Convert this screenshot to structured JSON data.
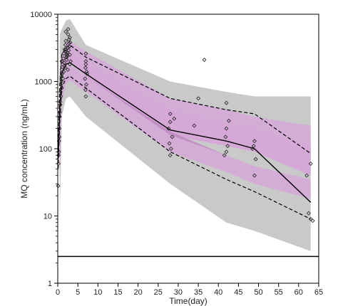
{
  "chart_data": {
    "type": "line",
    "title": "",
    "xlabel": "Time(day)",
    "ylabel": "MQ concentration (ng/mL)",
    "x_scale": "linear",
    "y_scale": "log",
    "xlim": [
      0,
      65
    ],
    "ylim": [
      1,
      10000
    ],
    "x_ticks": [
      0,
      5,
      10,
      15,
      20,
      25,
      30,
      35,
      40,
      45,
      50,
      55,
      60,
      65
    ],
    "y_ticks": [
      1,
      10,
      100,
      1000,
      10000
    ],
    "y_tick_labels": [
      "1",
      "10",
      "100",
      "1000",
      "10000"
    ],
    "colors": {
      "pi_band": "#c9c9c9",
      "median_band": "#d5a8d8",
      "median_band_overlap": "#b07ab4",
      "line": "#000000"
    },
    "bands": [
      {
        "name": "outer_prediction_interval",
        "x": [
          0.5,
          1,
          2,
          3,
          7,
          28,
          42,
          49,
          63
        ],
        "lower": [
          8,
          300,
          550,
          600,
          300,
          30,
          8,
          6,
          3
        ],
        "upper": [
          5000,
          6000,
          8000,
          8500,
          3500,
          1000,
          700,
          600,
          600
        ]
      },
      {
        "name": "median_interval_lower_percentile",
        "x": [
          0.5,
          1,
          2,
          3,
          7,
          28,
          42,
          49,
          63
        ],
        "lower": [
          30,
          500,
          900,
          1050,
          700,
          90,
          45,
          30,
          18
        ],
        "upper": [
          60,
          800,
          1500,
          1800,
          1200,
          180,
          80,
          55,
          35
        ]
      },
      {
        "name": "median_interval_median",
        "x": [
          0.5,
          1,
          2,
          3,
          7,
          28,
          42,
          49,
          63
        ],
        "lower": [
          50,
          1000,
          1600,
          1900,
          1200,
          160,
          110,
          90,
          40
        ],
        "upper": [
          100,
          1500,
          2400,
          2600,
          1800,
          380,
          230,
          200,
          110
        ]
      },
      {
        "name": "median_interval_upper_percentile",
        "x": [
          0.5,
          1,
          2,
          3,
          7,
          28,
          42,
          49,
          63
        ],
        "lower": [
          70,
          1300,
          2200,
          2500,
          1800,
          280,
          180,
          160,
          70
        ],
        "upper": [
          150,
          2500,
          3600,
          4000,
          2800,
          560,
          380,
          300,
          220
        ]
      }
    ],
    "series": [
      {
        "name": "",
        "style": "solid",
        "x": [
          0.1,
          0.5,
          1,
          2,
          3,
          7,
          28,
          42,
          49,
          63
        ],
        "y": [
          70,
          400,
          1300,
          1800,
          1900,
          1300,
          190,
          130,
          100,
          16
        ]
      },
      {
        "name": "",
        "style": "dashed",
        "x": [
          0.1,
          0.5,
          1,
          2,
          3,
          7,
          28,
          42,
          49,
          63
        ],
        "y": [
          100,
          900,
          2500,
          3200,
          3500,
          2300,
          560,
          380,
          330,
          85
        ]
      },
      {
        "name": "",
        "style": "dashed",
        "x": [
          0.1,
          0.5,
          1,
          2,
          3,
          7,
          28,
          42,
          49,
          63
        ],
        "y": [
          50,
          250,
          800,
          1100,
          1200,
          800,
          90,
          35,
          23,
          9
        ]
      }
    ],
    "reference_line": {
      "y": 2.5,
      "style": "solid"
    },
    "observations": {
      "marker": "open-diamond",
      "x": [
        0.1,
        0.2,
        0.3,
        0.4,
        0.5,
        0.6,
        0.7,
        0.8,
        0.9,
        1.0,
        1.0,
        1.2,
        1.4,
        1.5,
        1.7,
        1.9,
        2.0,
        2.1,
        2.3,
        2.5,
        2.6,
        2.8,
        3.0,
        3.0,
        3.2,
        0.3,
        0.8,
        1.3,
        1.8,
        2.2,
        2.7,
        3.1,
        0.5,
        1.1,
        2.4,
        2.9,
        0.6,
        1.6,
        2.0,
        2.6,
        1.0,
        1.5,
        2.2,
        2.8,
        0.2,
        0.4,
        0.9,
        1.7,
        2.3,
        3.0,
        2.5,
        2.0,
        7.0,
        7.0,
        7.2,
        6.8,
        7.1,
        6.9,
        7.0,
        7.3,
        7.0,
        6.9,
        28,
        28,
        28.5,
        27.8,
        28.2,
        28,
        27.6,
        29,
        34,
        36.5,
        35,
        42,
        42,
        41.8,
        42.3,
        42,
        41.5,
        42.6,
        49,
        48.8,
        49.3,
        49,
        48.5,
        62,
        63,
        63.5,
        62.5,
        63
      ],
      "y": [
        28,
        60,
        90,
        150,
        300,
        500,
        700,
        900,
        1200,
        1500,
        2000,
        1800,
        2200,
        2600,
        3000,
        3500,
        4000,
        2800,
        2400,
        3200,
        5000,
        4200,
        4500,
        2500,
        2000,
        130,
        600,
        1100,
        1600,
        2300,
        2900,
        3800,
        350,
        1300,
        2700,
        3300,
        450,
        1900,
        5500,
        6000,
        800,
        1400,
        2100,
        3700,
        80,
        200,
        1000,
        1700,
        2500,
        1800,
        1500,
        3000,
        2600,
        1800,
        1400,
        1100,
        900,
        750,
        600,
        1300,
        2000,
        1600,
        330,
        250,
        150,
        120,
        100,
        80,
        200,
        280,
        220,
        2100,
        560,
        480,
        200,
        150,
        110,
        90,
        80,
        260,
        130,
        110,
        70,
        40,
        100,
        40,
        9,
        8.5,
        11,
        60
      ]
    }
  }
}
